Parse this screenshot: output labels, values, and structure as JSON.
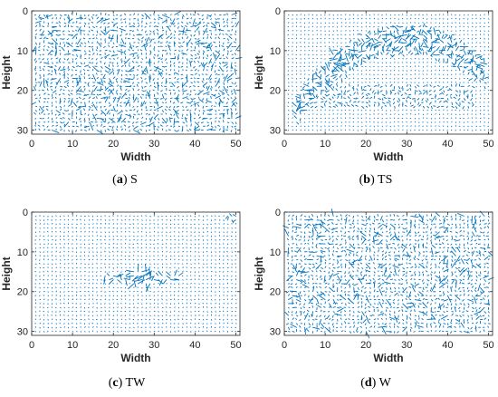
{
  "chart_data": [
    {
      "type": "quiver",
      "caption_letter": "a",
      "caption_text": "S",
      "xlabel": "Width",
      "ylabel": "Height",
      "xlim": [
        0,
        51
      ],
      "ylim": [
        0,
        31
      ],
      "y_reversed": true,
      "xticks": [
        0,
        10,
        20,
        30,
        40,
        50
      ],
      "yticks": [
        0,
        10,
        20,
        30
      ],
      "pattern": "scattered-uniform",
      "color": "#0072bd"
    },
    {
      "type": "quiver",
      "caption_letter": "b",
      "caption_text": "TS",
      "xlabel": "Width",
      "ylabel": "Height",
      "xlim": [
        0,
        51
      ],
      "ylim": [
        0,
        31
      ],
      "y_reversed": true,
      "xticks": [
        0,
        10,
        20,
        30,
        40,
        50
      ],
      "yticks": [
        0,
        10,
        20,
        30
      ],
      "pattern": "arc",
      "color": "#0072bd"
    },
    {
      "type": "quiver",
      "caption_letter": "c",
      "caption_text": "TW",
      "xlabel": "Width",
      "ylabel": "Height",
      "xlim": [
        0,
        51
      ],
      "ylim": [
        0,
        31
      ],
      "y_reversed": true,
      "xticks": [
        0,
        10,
        20,
        30,
        40,
        50
      ],
      "yticks": [
        0,
        10,
        20,
        30
      ],
      "pattern": "central-band",
      "color": "#0072bd"
    },
    {
      "type": "quiver",
      "caption_letter": "d",
      "caption_text": "W",
      "xlabel": "Width",
      "ylabel": "Height",
      "xlim": [
        0,
        51
      ],
      "ylim": [
        0,
        31
      ],
      "y_reversed": true,
      "xticks": [
        0,
        10,
        20,
        30,
        40,
        50
      ],
      "yticks": [
        0,
        10,
        20,
        30
      ],
      "pattern": "scattered-uniform",
      "color": "#0072bd"
    }
  ]
}
